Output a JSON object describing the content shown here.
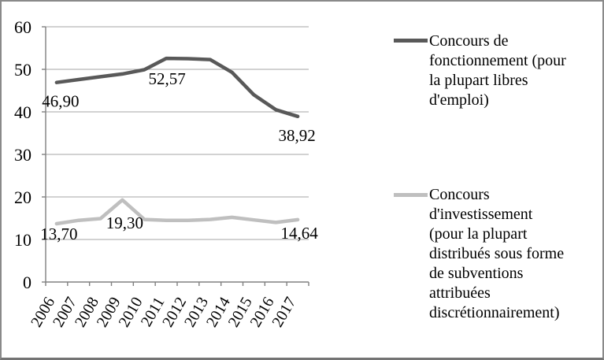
{
  "frame": {
    "background": "#ffffff",
    "border_color": "#8a8a8a"
  },
  "chart_data": {
    "type": "line",
    "title": "",
    "xlabel": "",
    "ylabel": "",
    "x": [
      "2006",
      "2007",
      "2008",
      "2009",
      "2010",
      "2011",
      "2012",
      "2013",
      "2014",
      "2015",
      "2016",
      "2017"
    ],
    "series": [
      {
        "name": "Concours de fonctionnement (pour la plupart libres d'emploi)",
        "color": "#595959",
        "values": [
          46.9,
          47.6,
          48.25,
          48.9,
          49.9,
          52.57,
          52.5,
          52.3,
          49.3,
          44.0,
          40.5,
          38.92
        ],
        "point_labels": [
          {
            "index": 0,
            "text": "46,90",
            "dx": 5,
            "dy": 31
          },
          {
            "index": 5,
            "text": "52,57",
            "dx": 1,
            "dy": 33
          },
          {
            "index": 11,
            "text": "38,92",
            "dx": -1,
            "dy": 31
          }
        ]
      },
      {
        "name": "Concours d'investissement (pour la plupart distribués sous forme de subventions attribuées discrétionnairement)",
        "color": "#bfbfbf",
        "values": [
          13.7,
          14.5,
          14.9,
          19.3,
          14.7,
          14.5,
          14.5,
          14.7,
          15.2,
          14.6,
          14.0,
          14.64
        ],
        "point_labels": [
          {
            "index": 0,
            "text": "13,70",
            "dx": 3,
            "dy": 20
          },
          {
            "index": 3,
            "text": "19,30",
            "dx": 3,
            "dy": 36
          },
          {
            "index": 11,
            "text": "14,64",
            "dx": 2,
            "dy": 24
          }
        ]
      }
    ],
    "yticks": [
      "0",
      "10",
      "20",
      "30",
      "40",
      "50",
      "60"
    ],
    "ylim": [
      0,
      60
    ],
    "grid": true,
    "grid_color": "#a6a6a6",
    "axis_color": "#808080",
    "text_color": "#000000",
    "legend_position": "right"
  },
  "legend": {
    "entries": [
      {
        "color": "#595959",
        "lines": [
          "Concours de",
          "fonctionnement (pour",
          "la plupart libres",
          "d'emploi)"
        ]
      },
      {
        "color": "#bfbfbf",
        "lines": [
          "Concours",
          "d'investissement",
          "(pour la plupart",
          "distribués sous forme",
          "de subventions",
          "attribuées",
          "discrétionnairement)"
        ]
      }
    ]
  }
}
